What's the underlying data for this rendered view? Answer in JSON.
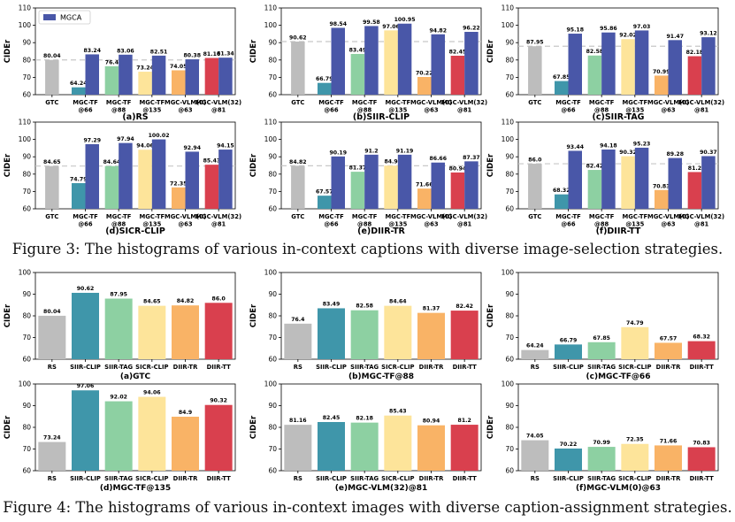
{
  "colors": {
    "gtc": "#bdbdbd",
    "tf66": "#3f96aa",
    "tf88": "#8dd0a2",
    "tf135": "#fde49a",
    "vlm0": "#f9b366",
    "vlm32": "#d9404e",
    "mgca": "#4957a8",
    "refline": "#c8c8c8"
  },
  "figure3": {
    "caption": "Figure 3: The histograms of various in-context captions with diverse image-selection strategies.",
    "legend_label": "MGCA",
    "ylabel": "CIDEr",
    "categories": [
      [
        "GTC"
      ],
      [
        "MGC-TF",
        "@66"
      ],
      [
        "MGC-TF",
        "@88"
      ],
      [
        "MGC-TF",
        "@135"
      ],
      [
        "MGC-VLM(0)",
        "@63"
      ],
      [
        "MGC-VLM(32)",
        "@81"
      ]
    ],
    "panels": [
      {
        "title": "(a)RS",
        "ylim": [
          60,
          110
        ],
        "yticks": [
          60,
          70,
          80,
          90,
          100,
          110
        ],
        "ref": 80.04,
        "base": [
          "80.04",
          "64.24",
          "76.4",
          "73.24",
          "74.05",
          "81.16"
        ],
        "mgca": [
          null,
          "83.24",
          "83.06",
          "82.51",
          "80.38",
          "81.34"
        ]
      },
      {
        "title": "(b)SIIR-CLIP",
        "ylim": [
          60,
          110
        ],
        "yticks": [
          60,
          70,
          80,
          90,
          100,
          110
        ],
        "ref": 90.62,
        "base": [
          "90.62",
          "66.79",
          "83.49",
          "97.06",
          "70.22",
          "82.45"
        ],
        "mgca": [
          null,
          "98.54",
          "99.58",
          "100.95",
          "94.82",
          "96.22"
        ]
      },
      {
        "title": "(c)SIIR-TAG",
        "ylim": [
          60,
          110
        ],
        "yticks": [
          60,
          70,
          80,
          90,
          100,
          110
        ],
        "ref": 87.95,
        "base": [
          "87.95",
          "67.85",
          "82.58",
          "92.02",
          "70.99",
          "82.18"
        ],
        "mgca": [
          null,
          "95.18",
          "95.86",
          "97.03",
          "91.47",
          "93.12"
        ]
      },
      {
        "title": "(d)SICR-CLIP",
        "ylim": [
          60,
          110
        ],
        "yticks": [
          60,
          70,
          80,
          90,
          100,
          110
        ],
        "ref": 84.65,
        "base": [
          "84.65",
          "74.79",
          "84.64",
          "94.06",
          "72.35",
          "85.43"
        ],
        "mgca": [
          null,
          "97.29",
          "97.94",
          "100.02",
          "92.94",
          "94.15"
        ]
      },
      {
        "title": "(e)DIIR-TR",
        "ylim": [
          60,
          110
        ],
        "yticks": [
          60,
          70,
          80,
          90,
          100,
          110
        ],
        "ref": 84.82,
        "base": [
          "84.82",
          "67.57",
          "81.37",
          "84.9",
          "71.66",
          "80.94"
        ],
        "mgca": [
          null,
          "90.19",
          "91.2",
          "91.19",
          "86.66",
          "87.37"
        ]
      },
      {
        "title": "(f)DIIR-TT",
        "ylim": [
          60,
          110
        ],
        "yticks": [
          60,
          70,
          80,
          90,
          100,
          110
        ],
        "ref": 86.0,
        "base": [
          "86.0",
          "68.32",
          "82.42",
          "90.32",
          "70.83",
          "81.2"
        ],
        "mgca": [
          null,
          "93.44",
          "94.18",
          "95.23",
          "89.28",
          "90.37"
        ]
      }
    ]
  },
  "figure4": {
    "caption": "Figure 4: The histograms of various in-context images with diverse caption-assignment strategies.",
    "ylabel": "CIDEr",
    "categories": [
      "RS",
      "SIIR-CLIP",
      "SIIR-TAG",
      "SICR-CLIP",
      "DIIR-TR",
      "DIIR-TT"
    ],
    "panels": [
      {
        "title": "(a)GTC",
        "ylim": [
          60,
          100
        ],
        "yticks": [
          60,
          70,
          80,
          90,
          100
        ],
        "values": [
          "80.04",
          "90.62",
          "87.95",
          "84.65",
          "84.82",
          "86.0"
        ]
      },
      {
        "title": "(b)MGC-TF@88",
        "ylim": [
          60,
          100
        ],
        "yticks": [
          60,
          70,
          80,
          90,
          100
        ],
        "values": [
          "76.4",
          "83.49",
          "82.58",
          "84.64",
          "81.37",
          "82.42"
        ]
      },
      {
        "title": "(c)MGC-TF@66",
        "ylim": [
          60,
          100
        ],
        "yticks": [
          60,
          70,
          80,
          90,
          100
        ],
        "values": [
          "64.24",
          "66.79",
          "67.85",
          "74.79",
          "67.57",
          "68.32"
        ]
      },
      {
        "title": "(d)MGC-TF@135",
        "ylim": [
          60,
          100
        ],
        "yticks": [
          60,
          70,
          80,
          90,
          100
        ],
        "values": [
          "73.24",
          "97.06",
          "92.02",
          "94.06",
          "84.9",
          "90.32"
        ]
      },
      {
        "title": "(e)MGC-VLM(32)@81",
        "ylim": [
          60,
          100
        ],
        "yticks": [
          60,
          70,
          80,
          90,
          100
        ],
        "values": [
          "81.16",
          "82.45",
          "82.18",
          "85.43",
          "80.94",
          "81.2"
        ]
      },
      {
        "title": "(f)MGC-VLM(0)@63",
        "ylim": [
          60,
          100
        ],
        "yticks": [
          60,
          70,
          80,
          90,
          100
        ],
        "values": [
          "74.05",
          "70.22",
          "70.99",
          "72.35",
          "71.66",
          "70.83"
        ]
      }
    ]
  },
  "chart_data": [
    {
      "type": "bar",
      "title": "(a)RS",
      "ylabel": "CIDEr",
      "ylim": [
        60,
        110
      ],
      "categories": [
        "GTC",
        "MGC-TF@66",
        "MGC-TF@88",
        "MGC-TF@135",
        "MGC-VLM(0)@63",
        "MGC-VLM(32)@81"
      ],
      "series": [
        {
          "values": [
            80.04,
            64.24,
            76.4,
            73.24,
            74.05,
            81.16
          ]
        },
        {
          "name": "MGCA",
          "values": [
            null,
            83.24,
            83.06,
            82.51,
            80.38,
            81.34
          ]
        }
      ]
    },
    {
      "type": "bar",
      "title": "(b)SIIR-CLIP",
      "ylabel": "CIDEr",
      "ylim": [
        60,
        110
      ],
      "categories": [
        "GTC",
        "MGC-TF@66",
        "MGC-TF@88",
        "MGC-TF@135",
        "MGC-VLM(0)@63",
        "MGC-VLM(32)@81"
      ],
      "series": [
        {
          "values": [
            90.62,
            66.79,
            83.49,
            97.06,
            70.22,
            82.45
          ]
        },
        {
          "name": "MGCA",
          "values": [
            null,
            98.54,
            99.58,
            100.95,
            94.82,
            96.22
          ]
        }
      ]
    },
    {
      "type": "bar",
      "title": "(c)SIIR-TAG",
      "ylabel": "CIDEr",
      "ylim": [
        60,
        110
      ],
      "categories": [
        "GTC",
        "MGC-TF@66",
        "MGC-TF@88",
        "MGC-TF@135",
        "MGC-VLM(0)@63",
        "MGC-VLM(32)@81"
      ],
      "series": [
        {
          "values": [
            87.95,
            67.85,
            82.58,
            92.02,
            70.99,
            82.18
          ]
        },
        {
          "name": "MGCA",
          "values": [
            null,
            95.18,
            95.86,
            97.03,
            91.47,
            93.12
          ]
        }
      ]
    },
    {
      "type": "bar",
      "title": "(d)SICR-CLIP",
      "ylabel": "CIDEr",
      "ylim": [
        60,
        110
      ],
      "categories": [
        "GTC",
        "MGC-TF@66",
        "MGC-TF@88",
        "MGC-TF@135",
        "MGC-VLM(0)@63",
        "MGC-VLM(32)@81"
      ],
      "series": [
        {
          "values": [
            84.65,
            74.79,
            84.64,
            94.06,
            72.35,
            85.43
          ]
        },
        {
          "name": "MGCA",
          "values": [
            null,
            97.29,
            97.94,
            100.02,
            92.94,
            94.15
          ]
        }
      ]
    },
    {
      "type": "bar",
      "title": "(e)DIIR-TR",
      "ylabel": "CIDEr",
      "ylim": [
        60,
        110
      ],
      "categories": [
        "GTC",
        "MGC-TF@66",
        "MGC-TF@88",
        "MGC-TF@135",
        "MGC-VLM(0)@63",
        "MGC-VLM(32)@81"
      ],
      "series": [
        {
          "values": [
            84.82,
            67.57,
            81.37,
            84.9,
            71.66,
            80.94
          ]
        },
        {
          "name": "MGCA",
          "values": [
            null,
            90.19,
            91.2,
            91.19,
            86.66,
            87.37
          ]
        }
      ]
    },
    {
      "type": "bar",
      "title": "(f)DIIR-TT",
      "ylabel": "CIDEr",
      "ylim": [
        60,
        110
      ],
      "categories": [
        "GTC",
        "MGC-TF@66",
        "MGC-TF@88",
        "MGC-TF@135",
        "MGC-VLM(0)@63",
        "MGC-VLM(32)@81"
      ],
      "series": [
        {
          "values": [
            86.0,
            68.32,
            82.42,
            90.32,
            70.83,
            81.2
          ]
        },
        {
          "name": "MGCA",
          "values": [
            null,
            93.44,
            94.18,
            95.23,
            89.28,
            90.37
          ]
        }
      ]
    },
    {
      "type": "bar",
      "title": "(a)GTC",
      "ylabel": "CIDEr",
      "ylim": [
        60,
        100
      ],
      "categories": [
        "RS",
        "SIIR-CLIP",
        "SIIR-TAG",
        "SICR-CLIP",
        "DIIR-TR",
        "DIIR-TT"
      ],
      "values": [
        80.04,
        90.62,
        87.95,
        84.65,
        84.82,
        86.0
      ]
    },
    {
      "type": "bar",
      "title": "(b)MGC-TF@88",
      "ylabel": "CIDEr",
      "ylim": [
        60,
        100
      ],
      "categories": [
        "RS",
        "SIIR-CLIP",
        "SIIR-TAG",
        "SICR-CLIP",
        "DIIR-TR",
        "DIIR-TT"
      ],
      "values": [
        76.4,
        83.49,
        82.58,
        84.64,
        81.37,
        82.42
      ]
    },
    {
      "type": "bar",
      "title": "(c)MGC-TF@66",
      "ylabel": "CIDEr",
      "ylim": [
        60,
        100
      ],
      "categories": [
        "RS",
        "SIIR-CLIP",
        "SIIR-TAG",
        "SICR-CLIP",
        "DIIR-TR",
        "DIIR-TT"
      ],
      "values": [
        64.24,
        66.79,
        67.85,
        74.79,
        67.57,
        68.32
      ]
    },
    {
      "type": "bar",
      "title": "(d)MGC-TF@135",
      "ylabel": "CIDEr",
      "ylim": [
        60,
        100
      ],
      "categories": [
        "RS",
        "SIIR-CLIP",
        "SIIR-TAG",
        "SICR-CLIP",
        "DIIR-TR",
        "DIIR-TT"
      ],
      "values": [
        73.24,
        97.06,
        92.02,
        94.06,
        84.9,
        90.32
      ]
    },
    {
      "type": "bar",
      "title": "(e)MGC-VLM(32)@81",
      "ylabel": "CIDEr",
      "ylim": [
        60,
        100
      ],
      "categories": [
        "RS",
        "SIIR-CLIP",
        "SIIR-TAG",
        "SICR-CLIP",
        "DIIR-TR",
        "DIIR-TT"
      ],
      "values": [
        81.16,
        82.45,
        82.18,
        85.43,
        80.94,
        81.2
      ]
    },
    {
      "type": "bar",
      "title": "(f)MGC-VLM(0)@63",
      "ylabel": "CIDEr",
      "ylim": [
        60,
        100
      ],
      "categories": [
        "RS",
        "SIIR-CLIP",
        "SIIR-TAG",
        "SICR-CLIP",
        "DIIR-TR",
        "DIIR-TT"
      ],
      "values": [
        74.05,
        70.22,
        70.99,
        72.35,
        71.66,
        70.83
      ]
    }
  ]
}
